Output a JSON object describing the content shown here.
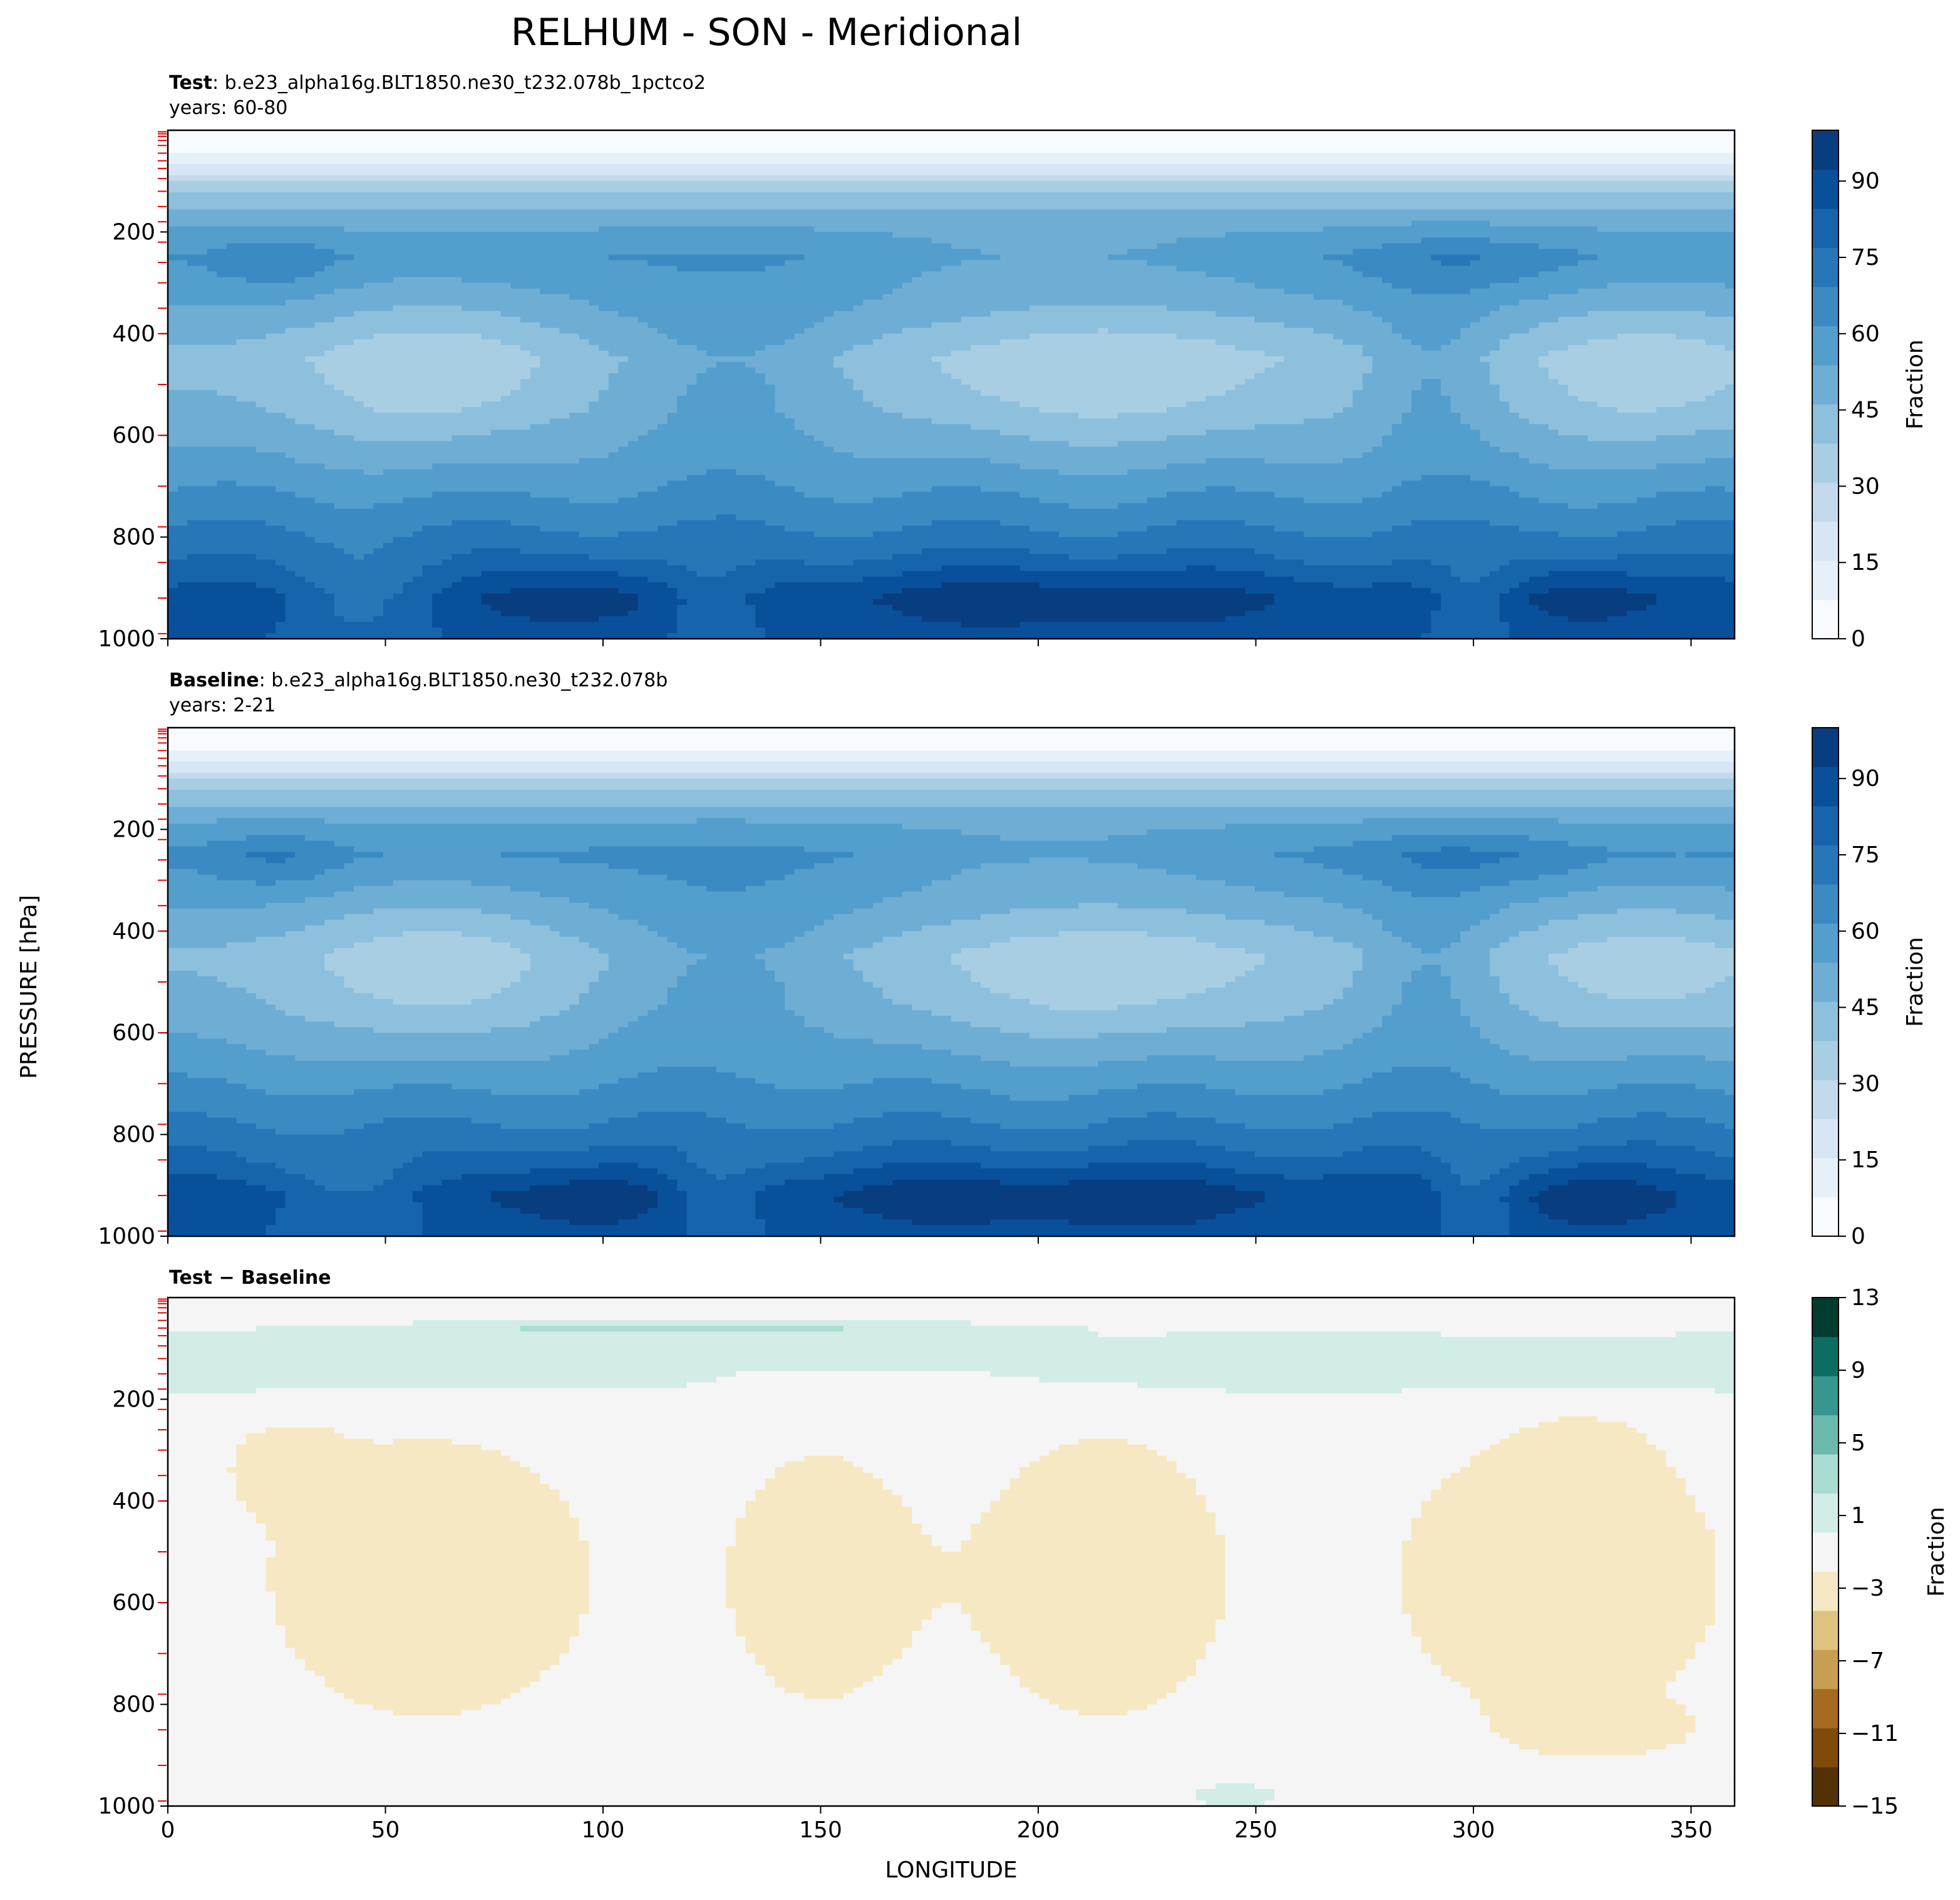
{
  "chart_data": {
    "type": "contour",
    "title": "RELHUM - SON - Meridional",
    "xlabel": "LONGITUDE",
    "ylabel": "PRESSURE [hPa]",
    "xlim": [
      0,
      360
    ],
    "ylim": [
      1000,
      0
    ],
    "x_ticks": [
      "0",
      "50",
      "100",
      "150",
      "200",
      "250",
      "300",
      "350"
    ],
    "y_ticks": [
      "200",
      "400",
      "600",
      "800",
      "1000"
    ],
    "panels": [
      {
        "id": "test",
        "title_bold": "Test",
        "title_rest": ": b.e23_alpha16g.BLT1850.ne30_t232.078b_1pctco2",
        "years": "years: 60-80",
        "colorbar_label": "Fraction",
        "colorbar_ticks": [
          "0",
          "15",
          "30",
          "45",
          "60",
          "75",
          "90"
        ],
        "colorbar_range": [
          0,
          100
        ]
      },
      {
        "id": "baseline",
        "title_bold": "Baseline",
        "title_rest": ": b.e23_alpha16g.BLT1850.ne30_t232.078b",
        "years": "years: 2-21",
        "colorbar_label": "Fraction",
        "colorbar_ticks": [
          "0",
          "15",
          "30",
          "45",
          "60",
          "75",
          "90"
        ],
        "colorbar_range": [
          0,
          100
        ]
      },
      {
        "id": "diff",
        "title_bold": "Test − Baseline",
        "title_rest": "",
        "years": "",
        "colorbar_label": "Fraction",
        "colorbar_ticks": [
          "−15",
          "−11",
          "−7",
          "−3",
          "1",
          "5",
          "9",
          "13"
        ],
        "colorbar_range": [
          -15,
          13
        ]
      }
    ],
    "blues_palette": [
      "#f7fbff",
      "#e6f0f9",
      "#d6e6f4",
      "#c2d9ee",
      "#a8cee4",
      "#8dc0dd",
      "#6faed4",
      "#539ecd",
      "#3b8bc2",
      "#2777b8",
      "#1664ab",
      "#08509a",
      "#083d7f"
    ],
    "diff_palette": [
      "#543005",
      "#804a09",
      "#a66b1f",
      "#c89e52",
      "#dfc27d",
      "#f6e8c3",
      "#f5f5f5",
      "#d2ece8",
      "#a9dcd2",
      "#6ab9ad",
      "#35978f",
      "#0c6e63",
      "#003c30"
    ],
    "field_levels_test": [
      {
        "p": 0,
        "v": 1
      },
      {
        "p": 40,
        "v": 2
      },
      {
        "p": 80,
        "v": 15
      },
      {
        "p": 120,
        "v": 33
      },
      {
        "p": 180,
        "v": 48
      },
      {
        "p": 250,
        "v": 58
      },
      {
        "p": 350,
        "v": 50
      },
      {
        "p": 450,
        "v": 40
      },
      {
        "p": 550,
        "v": 44
      },
      {
        "p": 650,
        "v": 52
      },
      {
        "p": 750,
        "v": 62
      },
      {
        "p": 850,
        "v": 74
      },
      {
        "p": 920,
        "v": 86
      },
      {
        "p": 1000,
        "v": 82
      }
    ],
    "field_levels_baseline": [
      {
        "p": 0,
        "v": 1
      },
      {
        "p": 40,
        "v": 2
      },
      {
        "p": 80,
        "v": 16
      },
      {
        "p": 120,
        "v": 34
      },
      {
        "p": 180,
        "v": 49
      },
      {
        "p": 250,
        "v": 60
      },
      {
        "p": 350,
        "v": 51
      },
      {
        "p": 450,
        "v": 41
      },
      {
        "p": 550,
        "v": 45
      },
      {
        "p": 650,
        "v": 53
      },
      {
        "p": 750,
        "v": 63
      },
      {
        "p": 850,
        "v": 75
      },
      {
        "p": 920,
        "v": 87
      },
      {
        "p": 1000,
        "v": 83
      }
    ]
  }
}
